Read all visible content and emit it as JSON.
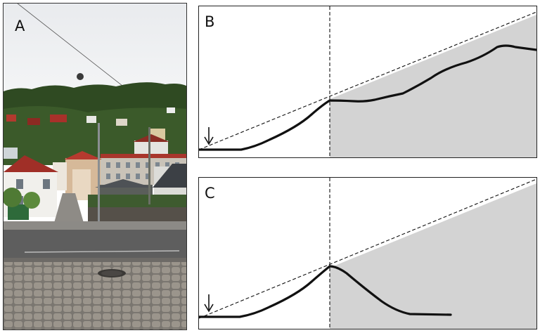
{
  "panels": {
    "a": {
      "label": "A"
    },
    "b": {
      "label": "B"
    },
    "c": {
      "label": "C"
    }
  },
  "colors": {
    "shade": "#d3d3d3",
    "curve": "#111111",
    "border": "#222222"
  },
  "icons": {
    "start_marker": "down-arrow-icon"
  }
}
